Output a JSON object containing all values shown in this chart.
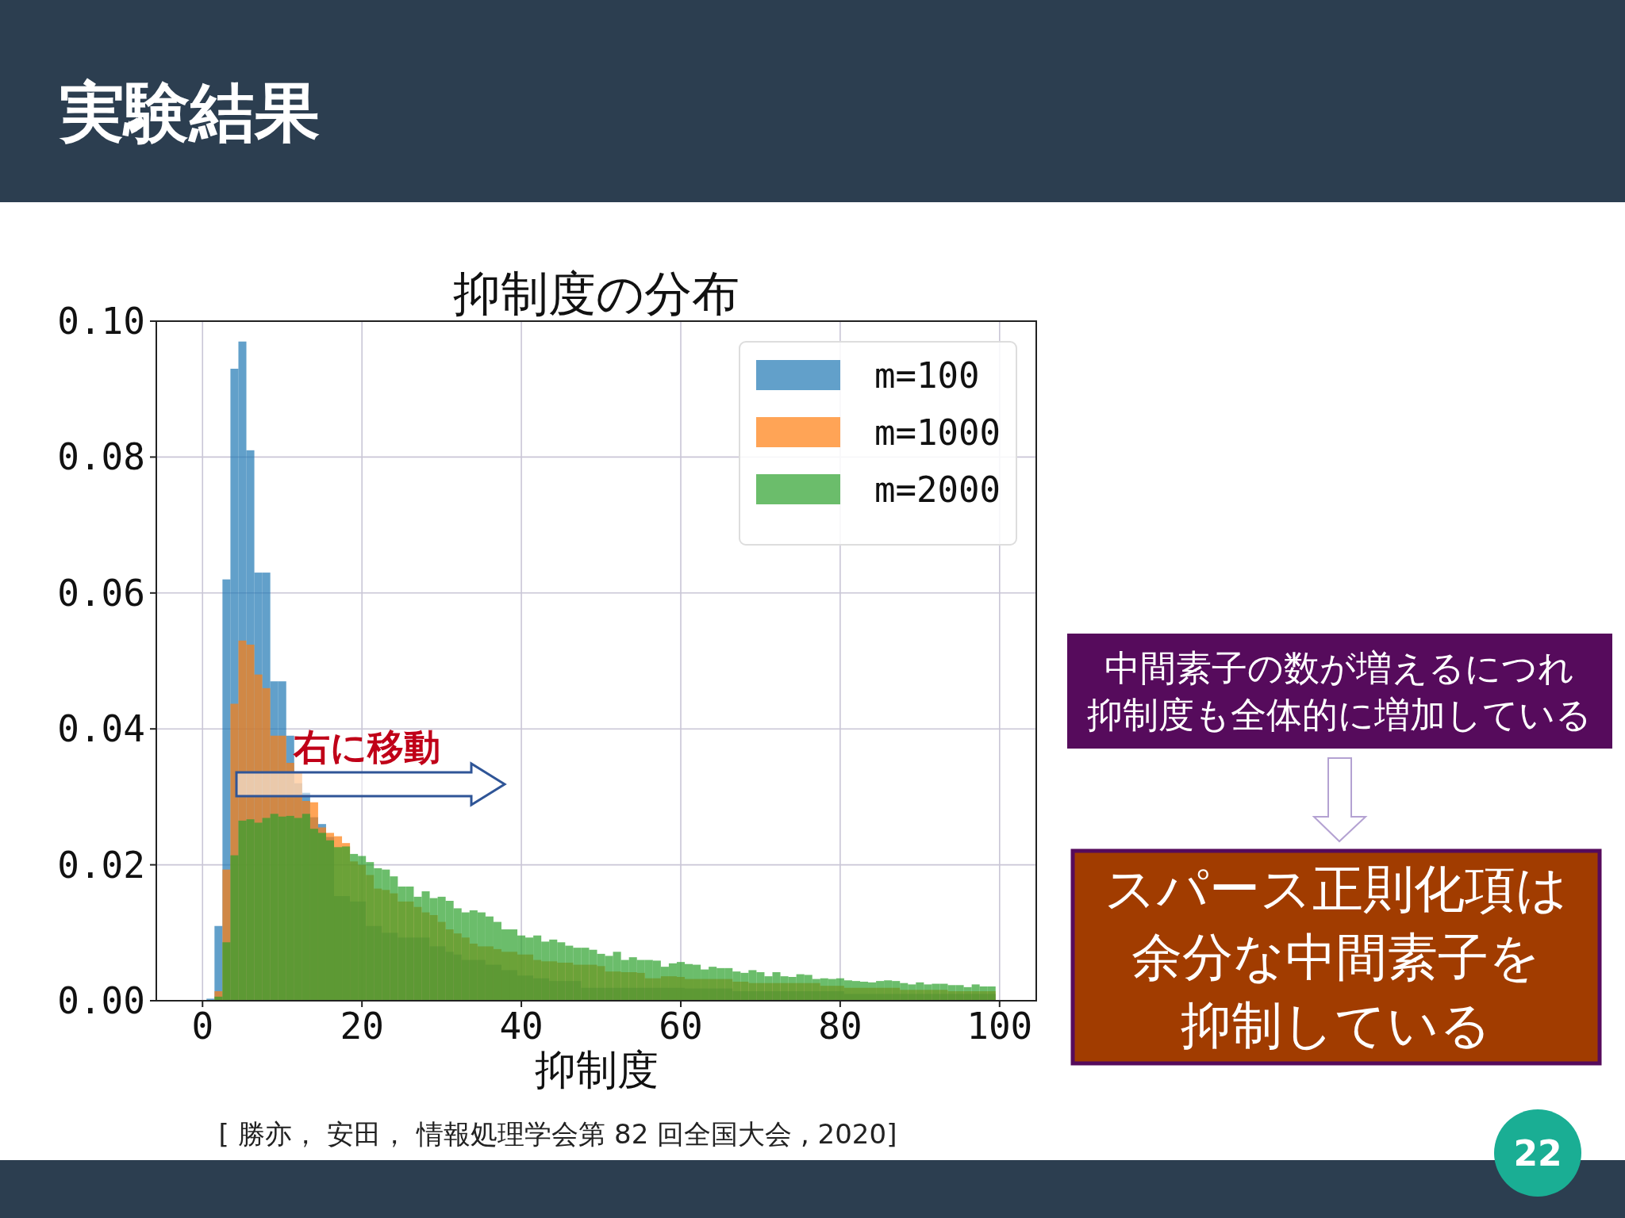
{
  "chart_data": {
    "type": "histogram",
    "title": "抑制度の分布",
    "xlabel": "抑制度",
    "bins": [
      0.5,
      1.5,
      2.5,
      3.5,
      4.5,
      5.5,
      6.5,
      7.5,
      8.5,
      9.5,
      10.5,
      11.5,
      12.5,
      13.5,
      14.5,
      15.5,
      16.5,
      17.5,
      18.5,
      19.5,
      20.5,
      21.5,
      22.5,
      23.5,
      24.5,
      25.5,
      26.5,
      27.5,
      28.5,
      29.5,
      30.5,
      31.5,
      32.5,
      33.5,
      34.5,
      35.5,
      36.5,
      37.5,
      38.5,
      39.5,
      40.5,
      41.5,
      42.5,
      43.5,
      44.5,
      45.5,
      46.5,
      47.5,
      48.5,
      49.5,
      50.5,
      51.5,
      52.5,
      53.5,
      54.5,
      55.5,
      56.5,
      57.5,
      58.5,
      59.5,
      60.5,
      61.5,
      62.5,
      63.5,
      64.5,
      65.5,
      66.5,
      67.5,
      68.5,
      69.5,
      70.5,
      71.5,
      72.5,
      73.5,
      74.5,
      75.5,
      76.5,
      77.5,
      78.5,
      79.5,
      80.5,
      81.5,
      82.5,
      83.5,
      84.5,
      85.5,
      86.5,
      87.5,
      88.5,
      89.5,
      90.5,
      91.5,
      92.5,
      93.5,
      94.5,
      95.5,
      96.5,
      97.5,
      98.5,
      99.5
    ],
    "series": [
      {
        "name": "m=100",
        "color": "#62a0ca",
        "values": [
          0.0003,
          0.011,
          0.062,
          0.093,
          0.097,
          0.081,
          0.063,
          0.063,
          0.047,
          0.047,
          0.039,
          0.032,
          0.0306,
          0.027,
          0.026,
          0.0241,
          0.0154,
          0.0154,
          0.0146,
          0.0146,
          0.011,
          0.011,
          0.01,
          0.01,
          0.0093,
          0.0093,
          0.0093,
          0.0093,
          0.008,
          0.008,
          0.0072,
          0.0068,
          0.006,
          0.006,
          0.006,
          0.0053,
          0.0053,
          0.0045,
          0.0045,
          0.0037,
          0.0037,
          0.0033,
          0.0033,
          0.0029,
          0.0029,
          0.0029,
          0.0029,
          0.0019,
          0.0019,
          0.0019,
          0.0019,
          0.0019,
          0.0019,
          0.0019,
          0.0019,
          0.0019,
          0.0019,
          0.0019,
          0.0019,
          0.0019,
          0.0018,
          0.0018,
          0.0018,
          0.0018,
          0.0018,
          0.0018,
          0.0014,
          0.0014,
          0.0014,
          0.0014,
          0.0014,
          0.0014,
          0.0014,
          0.0014,
          0.0014,
          0.0014,
          0.0014,
          0.0014,
          0.0014,
          0.0014,
          0.001,
          0.001,
          0.001,
          0.001,
          0.001,
          0.001,
          0.001,
          0.001,
          0.001,
          0.001,
          0.001,
          0.001,
          0.001,
          0.001,
          0.001,
          0.001,
          0.001,
          0.001,
          0.001
        ]
      },
      {
        "name": "m=1000",
        "color": "#ffa556",
        "values": [
          null,
          0.0014,
          0.0193,
          0.0437,
          0.053,
          0.0524,
          0.048,
          0.046,
          0.039,
          0.039,
          0.035,
          0.0335,
          0.0294,
          0.0292,
          0.0255,
          0.0247,
          0.0242,
          0.0232,
          0.0205,
          0.02,
          0.0185,
          0.0165,
          0.0163,
          0.0158,
          0.0146,
          0.0146,
          0.0138,
          0.013,
          0.0126,
          0.0116,
          0.0105,
          0.0099,
          0.0093,
          0.0084,
          0.008,
          0.008,
          0.0076,
          0.0072,
          0.0072,
          0.0068,
          0.0068,
          0.006,
          0.0058,
          0.0058,
          0.0056,
          0.0056,
          0.0053,
          0.0053,
          0.0053,
          0.0051,
          0.0043,
          0.0043,
          0.0042,
          0.0042,
          0.0041,
          0.0033,
          0.0033,
          0.0036,
          0.0036,
          0.0035,
          0.0032,
          0.0032,
          0.0032,
          0.0032,
          0.0032,
          0.0032,
          0.0028,
          0.0028,
          0.0026,
          0.0026,
          0.0026,
          0.0026,
          0.0026,
          0.0026,
          0.0026,
          0.0026,
          0.0026,
          0.0022,
          0.0022,
          0.0022,
          0.0019,
          0.0019,
          0.0019,
          0.0019,
          0.0019,
          0.0019,
          0.0019,
          0.0016,
          0.0016,
          0.0016,
          0.0016,
          0.0016,
          0.0016,
          0.0014,
          0.0014,
          0.0014,
          0.0014,
          0.0014,
          0.0014
        ]
      },
      {
        "name": "m=2000",
        "color": "#6bbd6b",
        "values": [
          null,
          0.0006,
          0.0086,
          0.0214,
          0.0265,
          0.0267,
          0.0262,
          0.0269,
          0.0275,
          0.0271,
          0.0272,
          0.0269,
          0.0275,
          0.0253,
          0.0247,
          0.0236,
          0.0226,
          0.0227,
          0.0216,
          0.0213,
          0.0204,
          0.0195,
          0.0193,
          0.0183,
          0.0168,
          0.0168,
          0.0153,
          0.0161,
          0.0151,
          0.0153,
          0.0147,
          0.0136,
          0.013,
          0.0133,
          0.013,
          0.0124,
          0.0116,
          0.0105,
          0.0105,
          0.0096,
          0.0093,
          0.0096,
          0.0087,
          0.009,
          0.0086,
          0.0081,
          0.0078,
          0.0078,
          0.0075,
          0.0069,
          0.0066,
          0.0072,
          0.006,
          0.0064,
          0.006,
          0.006,
          0.0059,
          0.005,
          0.0055,
          0.0057,
          0.0054,
          0.0053,
          0.0046,
          0.005,
          0.0048,
          0.0048,
          0.0043,
          0.0041,
          0.0045,
          0.0042,
          0.0036,
          0.0042,
          0.0036,
          0.0035,
          0.0039,
          0.0038,
          0.0032,
          0.0033,
          0.0032,
          0.0033,
          0.003,
          0.0029,
          0.0028,
          0.0027,
          0.0029,
          0.003,
          0.0029,
          0.0026,
          0.0024,
          0.0027,
          0.0024,
          0.0025,
          0.0025,
          0.0023,
          0.0023,
          0.002,
          0.0024,
          0.0021,
          0.0021
        ]
      }
    ],
    "xlim": [
      -5.8,
      104.6
    ],
    "ylim": [
      0,
      0.1
    ],
    "xticks": [
      0,
      20,
      40,
      60,
      80,
      100
    ],
    "yticks": [
      {
        "value": 0,
        "label": "0.00"
      },
      {
        "value": 0.02,
        "label": "0.02"
      },
      {
        "value": 0.04,
        "label": "0.04"
      },
      {
        "value": 0.06,
        "label": "0.06"
      },
      {
        "value": 0.08,
        "label": "0.08"
      },
      {
        "value": 0.1,
        "label": "0.10"
      }
    ],
    "grid": true,
    "legend": "top right",
    "annotations": [
      "実験結果",
      "右に移動",
      "中間素子の数が増えるにつれ",
      "抑制度も全体的に増加している",
      "スパース正則化項は",
      "余分な中間素子を",
      "抑制している",
      "[ 勝亦， 安田， 情報処理学会第 82 回全国大会 , 2020]",
      "22"
    ]
  }
}
